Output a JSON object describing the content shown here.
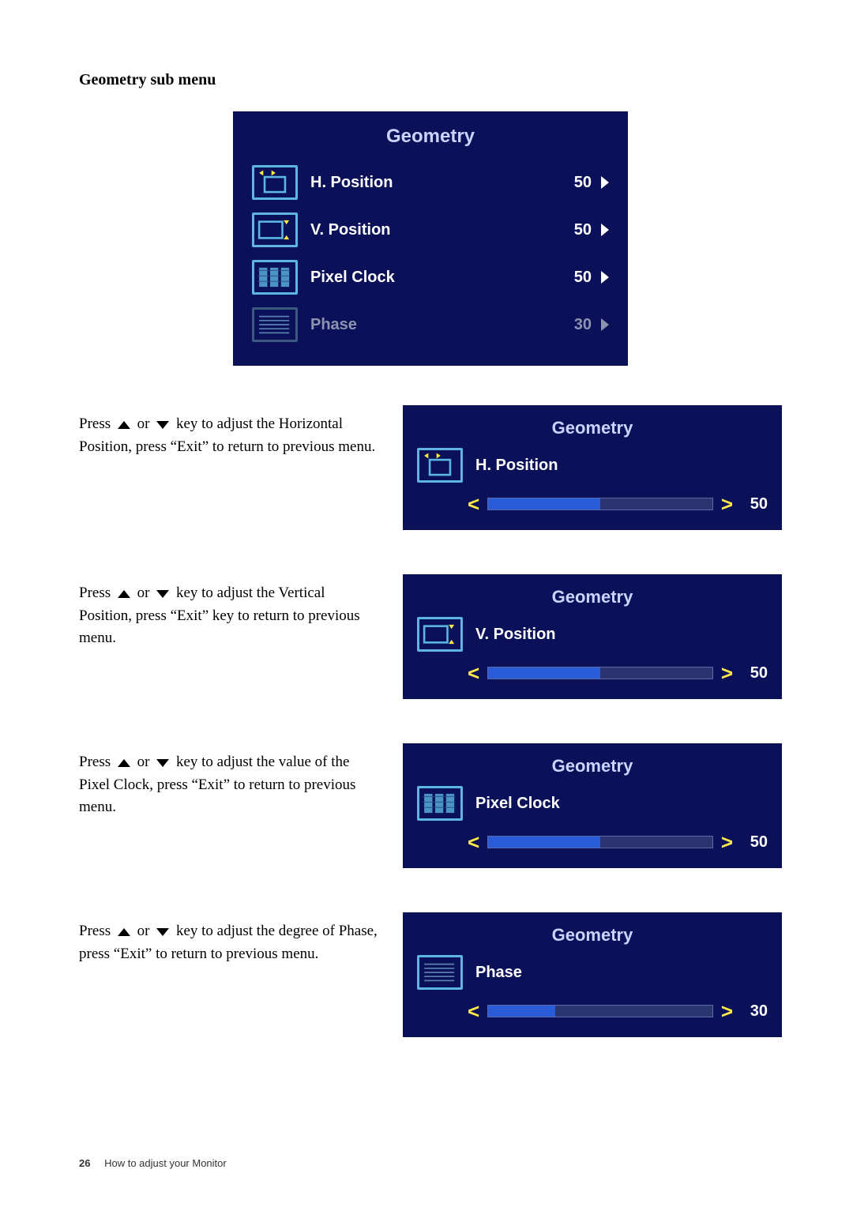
{
  "section_title": "Geometry sub menu",
  "main_panel": {
    "title": "Geometry",
    "rows": [
      {
        "icon": "hpos",
        "label": "H. Position",
        "value": "50",
        "dim": false
      },
      {
        "icon": "vpos",
        "label": "V. Position",
        "value": "50",
        "dim": false
      },
      {
        "icon": "pclk",
        "label": "Pixel Clock",
        "value": "50",
        "dim": false
      },
      {
        "icon": "phase",
        "label": "Phase",
        "value": "30",
        "dim": true
      }
    ]
  },
  "steps": [
    {
      "text_parts": [
        "Press ",
        "UP",
        " or ",
        "DOWN",
        " key to adjust the Horizontal Position, press “Exit” to return to previous menu."
      ],
      "panel": {
        "title": "Geometry",
        "label": "H. Position",
        "icon": "hpos",
        "value": "50",
        "fill_pct": 50
      }
    },
    {
      "text_parts": [
        "Press ",
        "UP",
        " or ",
        "DOWN",
        " key to adjust the Vertical Position, press “Exit” key to return to previous menu."
      ],
      "panel": {
        "title": "Geometry",
        "label": "V. Position",
        "icon": "vpos",
        "value": "50",
        "fill_pct": 50
      }
    },
    {
      "text_parts": [
        "Press ",
        "UP",
        " or ",
        "DOWN",
        " key to adjust the value of the Pixel Clock, press “Exit” to return to previous menu."
      ],
      "panel": {
        "title": "Geometry",
        "label": "Pixel Clock",
        "icon": "pclk",
        "value": "50",
        "fill_pct": 50
      }
    },
    {
      "text_parts": [
        "Press ",
        "UP",
        " or ",
        "DOWN",
        " key to adjust the degree of Phase, press “Exit” to return to previous menu."
      ],
      "panel": {
        "title": "Geometry",
        "label": "Phase",
        "icon": "phase",
        "value": "30",
        "fill_pct": 30
      }
    }
  ],
  "footer": {
    "page_num": "26",
    "text": "How to adjust your Monitor"
  },
  "colors": {
    "panel_bg": "#0a1158",
    "accent": "#5bb6e0",
    "dim": "#8b93b0",
    "yellow": "#ffe84a",
    "slider_fill": "#2a5bd8"
  }
}
